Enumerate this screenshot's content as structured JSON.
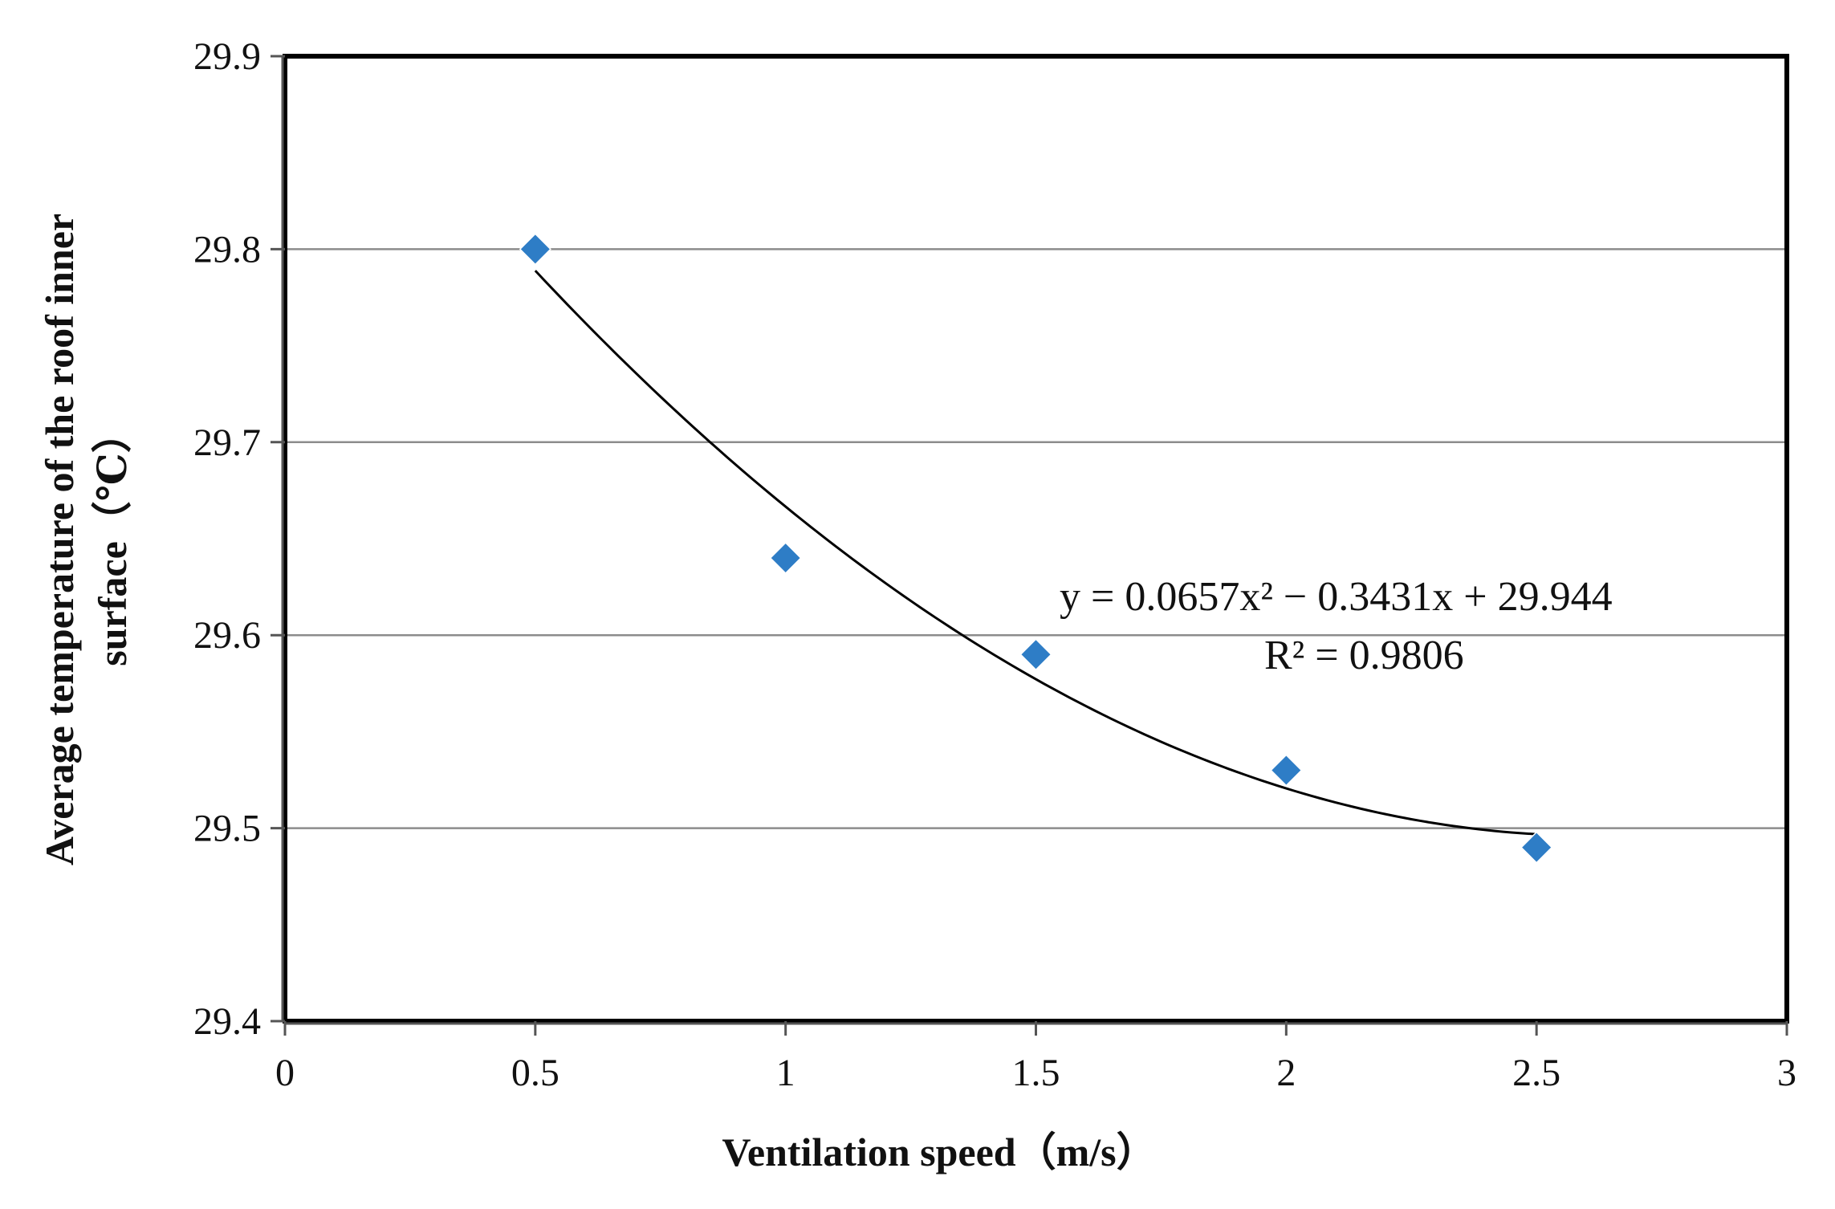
{
  "chart_data": {
    "type": "scatter",
    "title": "",
    "xlabel": "Ventilation speed（m/s）",
    "ylabel_lines": [
      "Average temperature of the roof inner",
      "surface（℃）"
    ],
    "xlim": [
      0,
      3
    ],
    "ylim": [
      29.4,
      29.9
    ],
    "x_ticks": [
      0,
      0.5,
      1,
      1.5,
      2,
      2.5,
      3
    ],
    "x_tick_labels": [
      "0",
      "0.5",
      "1",
      "1.5",
      "2",
      "2.5",
      "3"
    ],
    "y_ticks": [
      29.4,
      29.5,
      29.6,
      29.7,
      29.8,
      29.9
    ],
    "y_tick_labels": [
      "29.4",
      "29.5",
      "29.6",
      "29.7",
      "29.8",
      "29.9"
    ],
    "grid": true,
    "series": [
      {
        "name": "Average temperature",
        "marker": "diamond",
        "color": "#2E7DC6",
        "x": [
          0.5,
          1,
          1.5,
          2,
          2.5
        ],
        "y": [
          29.8,
          29.64,
          29.59,
          29.53,
          29.49
        ]
      }
    ],
    "trendline": {
      "type": "polynomial",
      "coefficients": [
        0.0657,
        -0.3431,
        29.944
      ],
      "x_range": [
        0.5,
        2.5
      ],
      "color": "#000000",
      "equation_text": "y = 0.0657x² − 0.3431x + 29.944",
      "r2_text": "R² = 0.9806"
    }
  }
}
